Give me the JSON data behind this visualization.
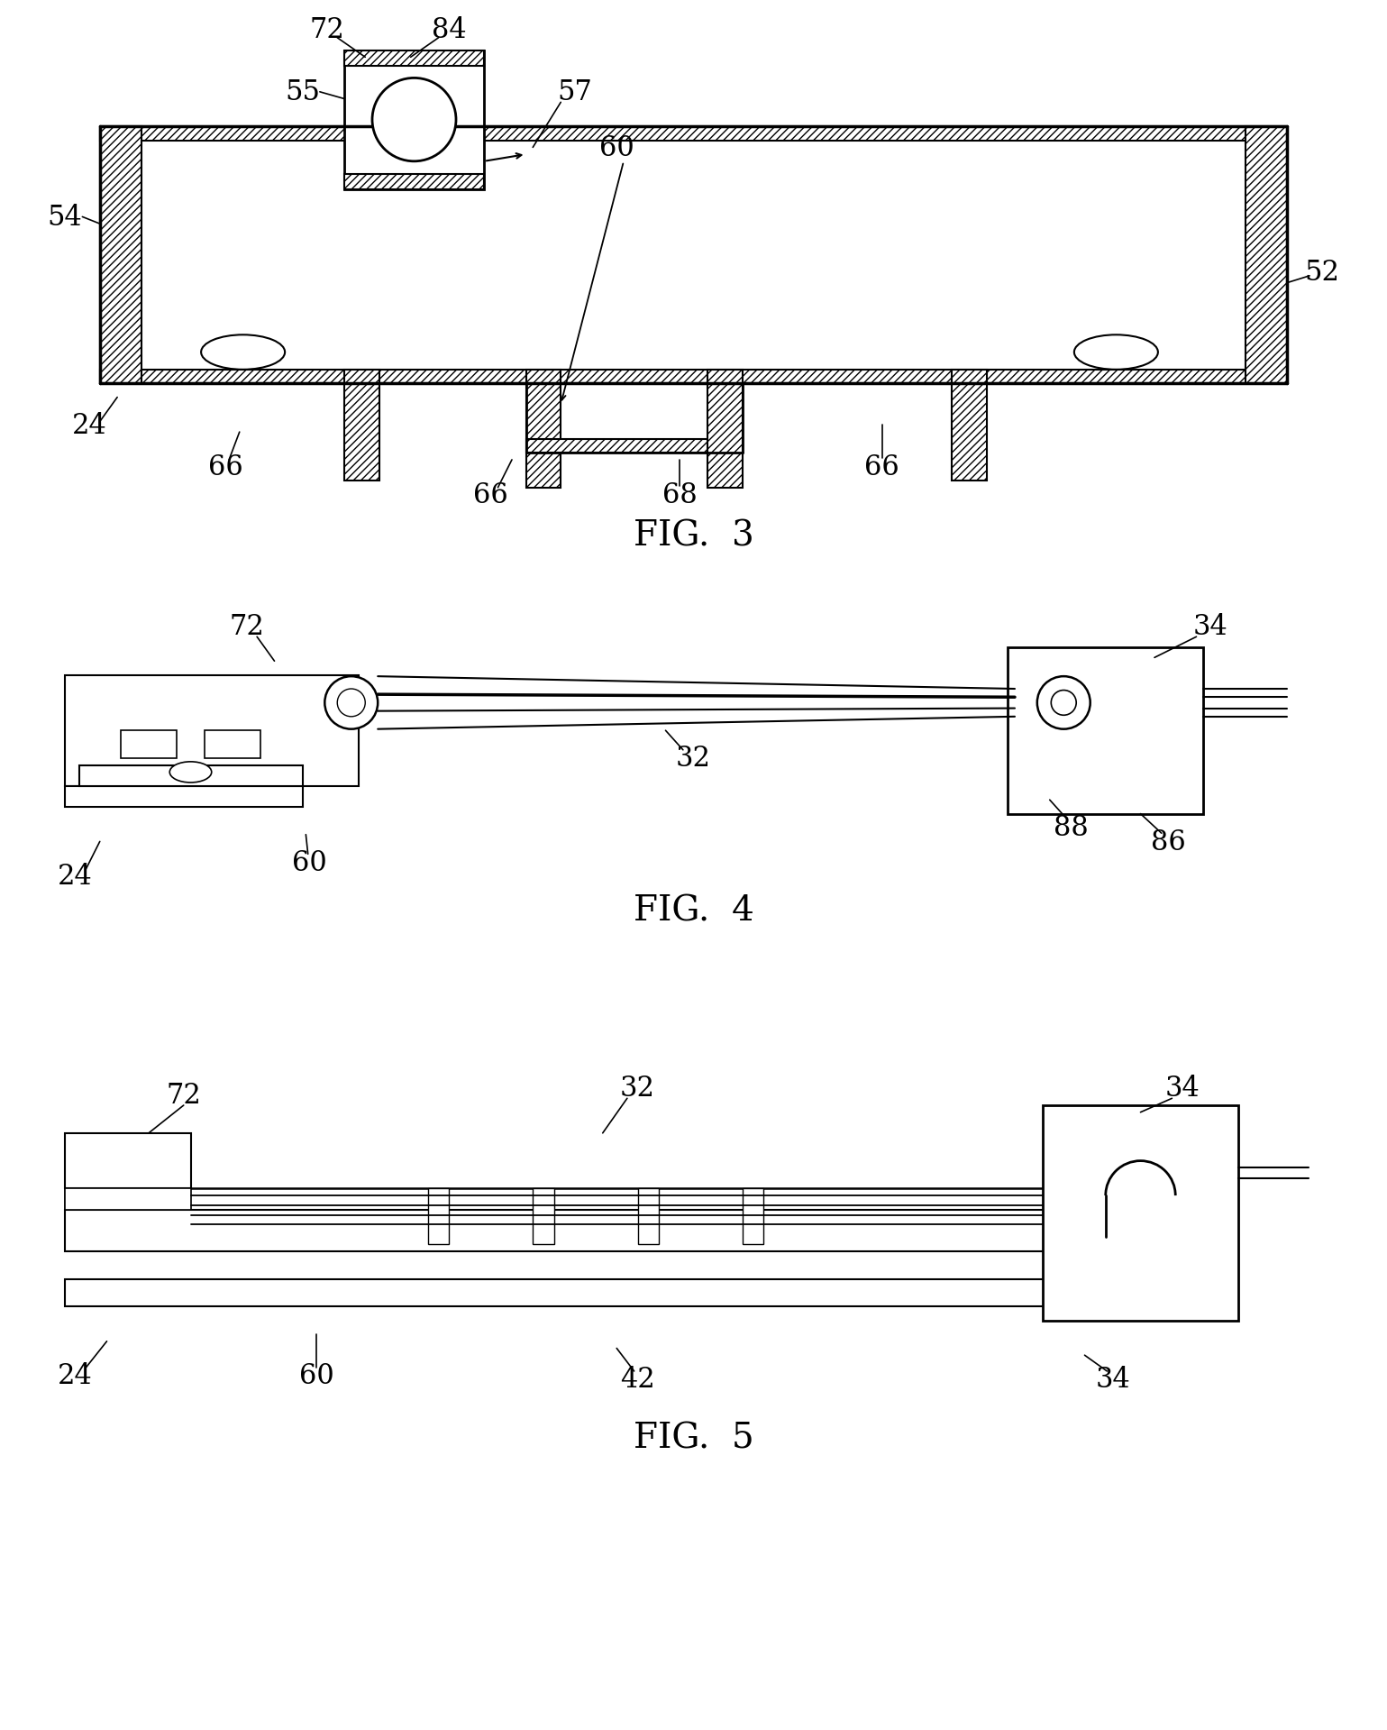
{
  "background_color": "#ffffff",
  "fig_width": 19.61,
  "fig_height": 24.67,
  "line_color": "#000000"
}
